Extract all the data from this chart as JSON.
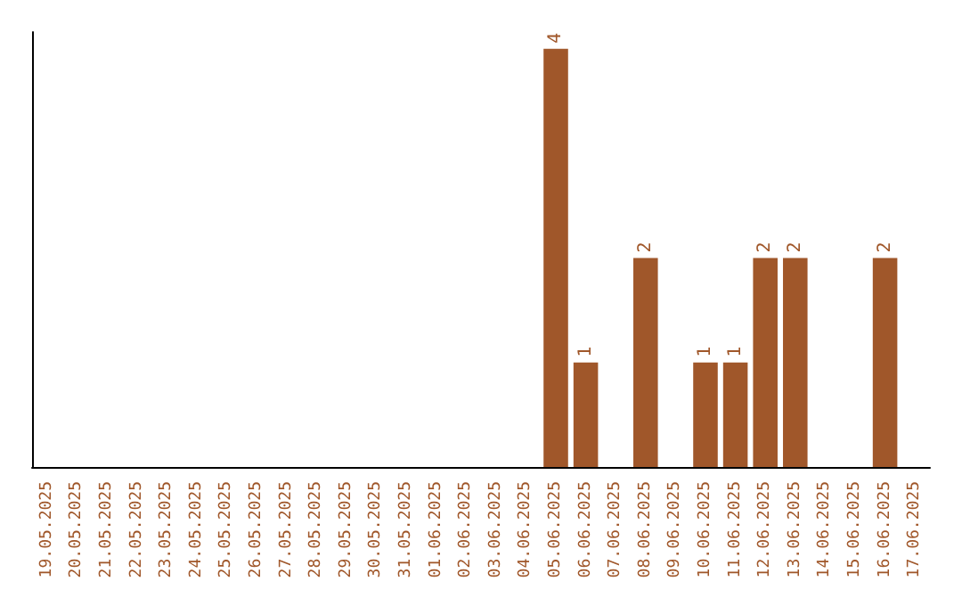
{
  "chart_data": {
    "type": "bar",
    "categories": [
      "19.05.2025",
      "20.05.2025",
      "21.05.2025",
      "22.05.2025",
      "23.05.2025",
      "24.05.2025",
      "25.05.2025",
      "26.05.2025",
      "27.05.2025",
      "28.05.2025",
      "29.05.2025",
      "30.05.2025",
      "31.05.2025",
      "01.06.2025",
      "02.06.2025",
      "03.06.2025",
      "04.06.2025",
      "05.06.2025",
      "06.06.2025",
      "07.06.2025",
      "08.06.2025",
      "09.06.2025",
      "10.06.2025",
      "11.06.2025",
      "12.06.2025",
      "13.06.2025",
      "14.06.2025",
      "15.06.2025",
      "16.06.2025",
      "17.06.2025"
    ],
    "values": [
      null,
      null,
      null,
      null,
      null,
      null,
      null,
      null,
      null,
      null,
      null,
      null,
      null,
      null,
      null,
      null,
      null,
      4,
      1,
      null,
      2,
      null,
      1,
      1,
      2,
      2,
      null,
      null,
      2,
      null
    ],
    "color": "#a0572a",
    "data_labels": true,
    "grid": false
  }
}
